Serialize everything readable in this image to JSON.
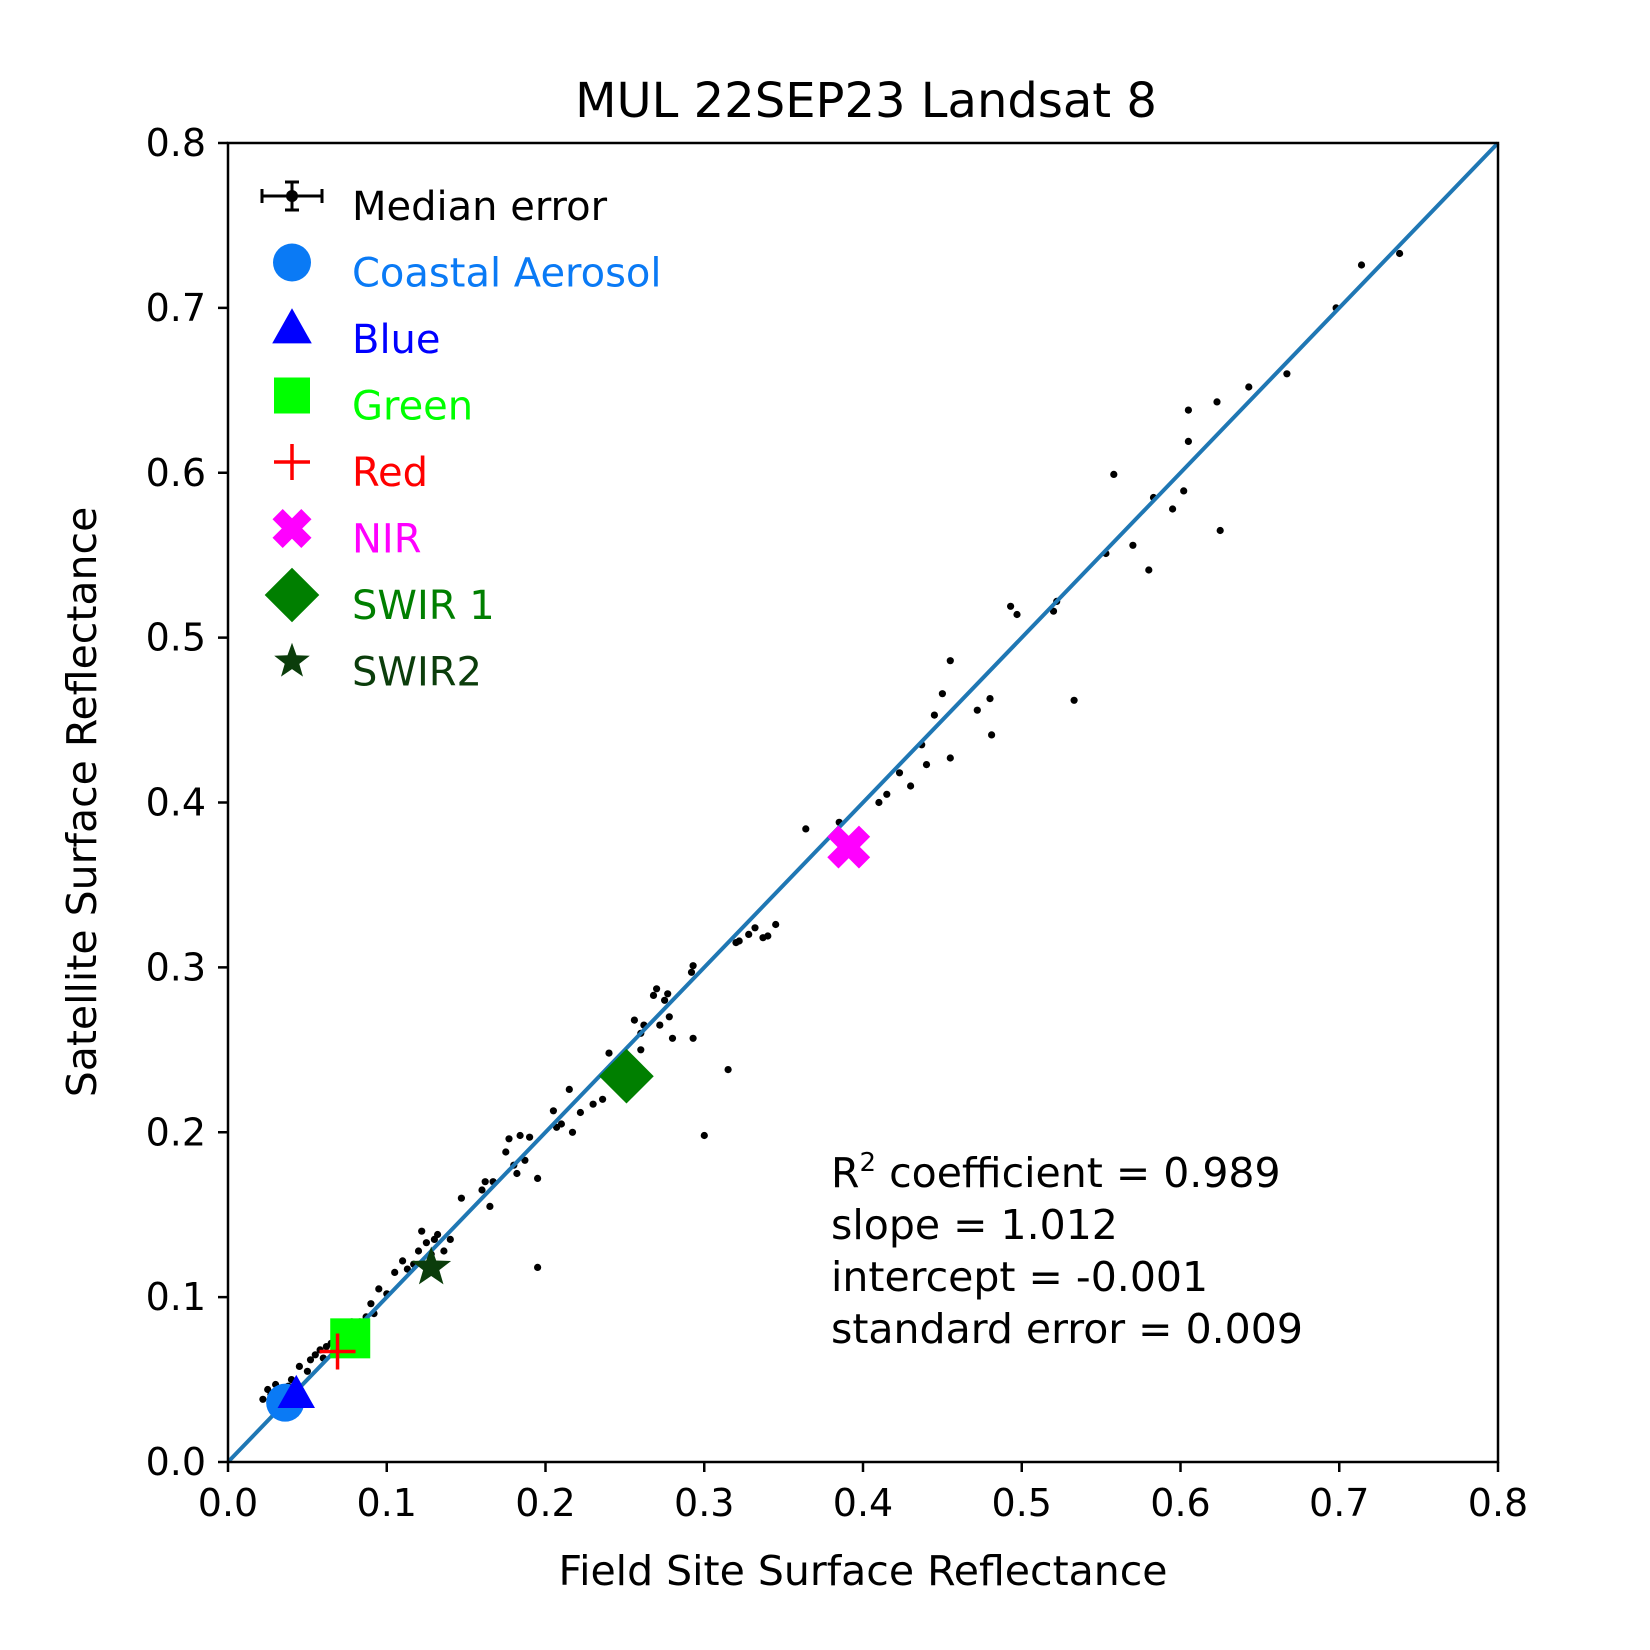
{
  "chart_data": {
    "type": "scatter",
    "title": "MUL 22SEP23 Landsat 8",
    "xlabel": "Field Site Surface Reflectance",
    "ylabel": "Satellite Surface Reflectance",
    "xlim": [
      0.0,
      0.8
    ],
    "ylim": [
      0.0,
      0.8
    ],
    "xticks": [
      "0.0",
      "0.1",
      "0.2",
      "0.3",
      "0.4",
      "0.5",
      "0.6",
      "0.7",
      "0.8"
    ],
    "yticks": [
      "0.0",
      "0.1",
      "0.2",
      "0.3",
      "0.4",
      "0.5",
      "0.6",
      "0.7",
      "0.8"
    ],
    "grid": false,
    "legend_position": "top-left",
    "fit_line": {
      "slope": 1.0,
      "intercept": 0.0,
      "color": "#1f77b4"
    },
    "legend": [
      {
        "label": "Median error",
        "marker": "errorbar-point",
        "color": "#000000"
      },
      {
        "label": "Coastal Aerosol",
        "marker": "circle",
        "color": "#0a7af5"
      },
      {
        "label": "Blue",
        "marker": "triangle",
        "color": "#0000ff"
      },
      {
        "label": "Green",
        "marker": "square",
        "color": "#00ff00"
      },
      {
        "label": "Red",
        "marker": "plus",
        "color": "#ff0000"
      },
      {
        "label": "NIR",
        "marker": "x-filled",
        "color": "#ff00ff"
      },
      {
        "label": "SWIR 1",
        "marker": "diamond",
        "color": "#007f00"
      },
      {
        "label": "SWIR2",
        "marker": "star",
        "color": "#0b3d0b"
      }
    ],
    "median_points": [
      {
        "band": "Coastal Aerosol",
        "x": 0.036,
        "y": 0.036
      },
      {
        "band": "Blue",
        "x": 0.043,
        "y": 0.041
      },
      {
        "band": "Green",
        "x": 0.077,
        "y": 0.075
      },
      {
        "band": "Red",
        "x": 0.069,
        "y": 0.067
      },
      {
        "band": "NIR",
        "x": 0.391,
        "y": 0.373
      },
      {
        "band": "SWIR 1",
        "x": 0.251,
        "y": 0.234
      },
      {
        "band": "SWIR2",
        "x": 0.128,
        "y": 0.118
      }
    ],
    "samples": {
      "color": "#000000",
      "points": [
        [
          0.022,
          0.038
        ],
        [
          0.025,
          0.044
        ],
        [
          0.027,
          0.041
        ],
        [
          0.03,
          0.047
        ],
        [
          0.032,
          0.042
        ],
        [
          0.035,
          0.04
        ],
        [
          0.038,
          0.046
        ],
        [
          0.04,
          0.05
        ],
        [
          0.045,
          0.058
        ],
        [
          0.05,
          0.055
        ],
        [
          0.052,
          0.062
        ],
        [
          0.055,
          0.065
        ],
        [
          0.058,
          0.068
        ],
        [
          0.06,
          0.063
        ],
        [
          0.062,
          0.07
        ],
        [
          0.065,
          0.072
        ],
        [
          0.07,
          0.073
        ],
        [
          0.075,
          0.069
        ],
        [
          0.078,
          0.085
        ],
        [
          0.08,
          0.066
        ],
        [
          0.083,
          0.085
        ],
        [
          0.087,
          0.088
        ],
        [
          0.09,
          0.096
        ],
        [
          0.092,
          0.09
        ],
        [
          0.095,
          0.105
        ],
        [
          0.1,
          0.102
        ],
        [
          0.105,
          0.115
        ],
        [
          0.11,
          0.122
        ],
        [
          0.113,
          0.117
        ],
        [
          0.117,
          0.12
        ],
        [
          0.12,
          0.128
        ],
        [
          0.122,
          0.14
        ],
        [
          0.125,
          0.133
        ],
        [
          0.128,
          0.126
        ],
        [
          0.13,
          0.135
        ],
        [
          0.132,
          0.138
        ],
        [
          0.136,
          0.128
        ],
        [
          0.14,
          0.135
        ],
        [
          0.147,
          0.16
        ],
        [
          0.16,
          0.165
        ],
        [
          0.162,
          0.17
        ],
        [
          0.165,
          0.155
        ],
        [
          0.167,
          0.17
        ],
        [
          0.175,
          0.188
        ],
        [
          0.177,
          0.196
        ],
        [
          0.18,
          0.18
        ],
        [
          0.182,
          0.175
        ],
        [
          0.184,
          0.198
        ],
        [
          0.187,
          0.183
        ],
        [
          0.19,
          0.197
        ],
        [
          0.195,
          0.172
        ],
        [
          0.205,
          0.213
        ],
        [
          0.207,
          0.203
        ],
        [
          0.21,
          0.205
        ],
        [
          0.215,
          0.226
        ],
        [
          0.217,
          0.2
        ],
        [
          0.222,
          0.212
        ],
        [
          0.23,
          0.217
        ],
        [
          0.236,
          0.22
        ],
        [
          0.24,
          0.248
        ],
        [
          0.245,
          0.24
        ],
        [
          0.26,
          0.26
        ],
        [
          0.256,
          0.268
        ],
        [
          0.26,
          0.25
        ],
        [
          0.262,
          0.265
        ],
        [
          0.268,
          0.283
        ],
        [
          0.27,
          0.287
        ],
        [
          0.272,
          0.265
        ],
        [
          0.275,
          0.28
        ],
        [
          0.277,
          0.284
        ],
        [
          0.278,
          0.27
        ],
        [
          0.28,
          0.257
        ],
        [
          0.293,
          0.257
        ],
        [
          0.292,
          0.297
        ],
        [
          0.293,
          0.301
        ],
        [
          0.315,
          0.238
        ],
        [
          0.32,
          0.315
        ],
        [
          0.322,
          0.316
        ],
        [
          0.328,
          0.32
        ],
        [
          0.332,
          0.324
        ],
        [
          0.337,
          0.318
        ],
        [
          0.34,
          0.319
        ],
        [
          0.345,
          0.326
        ],
        [
          0.364,
          0.384
        ],
        [
          0.385,
          0.388
        ],
        [
          0.395,
          0.375
        ],
        [
          0.41,
          0.4
        ],
        [
          0.415,
          0.405
        ],
        [
          0.423,
          0.418
        ],
        [
          0.43,
          0.41
        ],
        [
          0.437,
          0.435
        ],
        [
          0.44,
          0.423
        ],
        [
          0.445,
          0.453
        ],
        [
          0.45,
          0.466
        ],
        [
          0.455,
          0.427
        ],
        [
          0.455,
          0.486
        ],
        [
          0.472,
          0.456
        ],
        [
          0.48,
          0.463
        ],
        [
          0.481,
          0.441
        ],
        [
          0.493,
          0.519
        ],
        [
          0.497,
          0.514
        ],
        [
          0.52,
          0.516
        ],
        [
          0.522,
          0.522
        ],
        [
          0.533,
          0.462
        ],
        [
          0.553,
          0.551
        ],
        [
          0.558,
          0.599
        ],
        [
          0.57,
          0.556
        ],
        [
          0.58,
          0.541
        ],
        [
          0.583,
          0.585
        ],
        [
          0.595,
          0.578
        ],
        [
          0.602,
          0.589
        ],
        [
          0.605,
          0.619
        ],
        [
          0.605,
          0.638
        ],
        [
          0.623,
          0.643
        ],
        [
          0.625,
          0.565
        ],
        [
          0.643,
          0.652
        ],
        [
          0.667,
          0.66
        ],
        [
          0.698,
          0.7
        ],
        [
          0.714,
          0.726
        ],
        [
          0.738,
          0.733
        ],
        [
          0.3,
          0.198
        ],
        [
          0.195,
          0.118
        ]
      ]
    }
  },
  "stats": {
    "r2_label": "R",
    "r2_sup": "2",
    "r2_value": " coefficient = 0.989",
    "slope": "slope = 1.012",
    "intercept": "intercept = -0.001",
    "stderr": "standard error = 0.009"
  }
}
